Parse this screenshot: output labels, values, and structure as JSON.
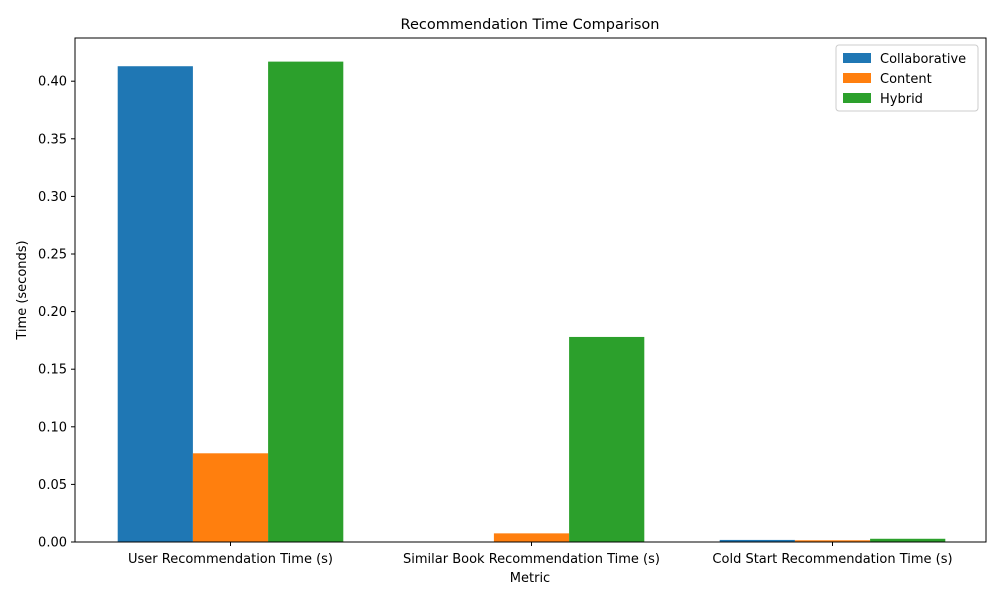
{
  "chart_data": {
    "type": "bar",
    "title": "Recommendation Time Comparison",
    "xlabel": "Metric",
    "ylabel": "Time (seconds)",
    "categories": [
      "User Recommendation Time (s)",
      "Similar Book Recommendation Time (s)",
      "Cold Start Recommendation Time (s)"
    ],
    "series": [
      {
        "name": "Collaborative",
        "color": "#1f77b4",
        "values": [
          0.413,
          0.0,
          0.0018
        ]
      },
      {
        "name": "Content",
        "color": "#ff7f0e",
        "values": [
          0.077,
          0.0075,
          0.0015
        ]
      },
      {
        "name": "Hybrid",
        "color": "#2ca02c",
        "values": [
          0.417,
          0.178,
          0.0028
        ]
      }
    ],
    "ylim": [
      0,
      0.4375
    ],
    "yticks": [
      "0.00",
      "0.05",
      "0.10",
      "0.15",
      "0.20",
      "0.25",
      "0.30",
      "0.35",
      "0.40"
    ],
    "grid": false,
    "legend_position": "top-right"
  }
}
